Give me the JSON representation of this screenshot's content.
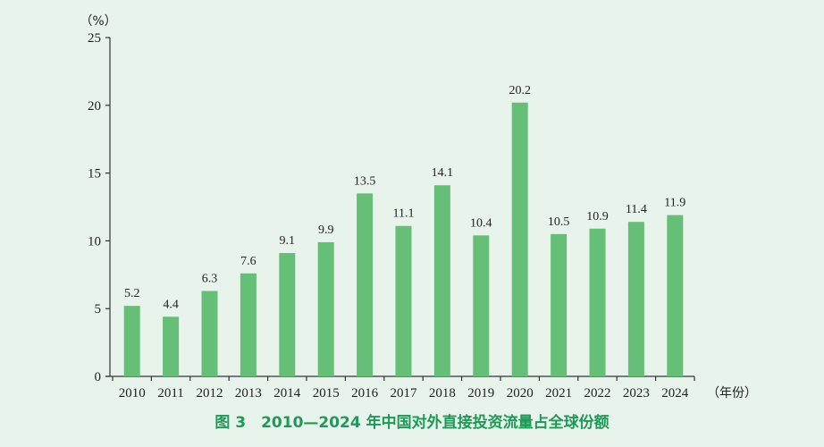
{
  "chart_data": {
    "type": "bar",
    "title": "图 3　2010—2024 年中国对外直接投资流量占全球份额",
    "xlabel": "（年份）",
    "ylabel": "（%）",
    "ylim": [
      0,
      25
    ],
    "yticks": [
      0,
      5,
      10,
      15,
      20,
      25
    ],
    "grid": false,
    "legend": null,
    "categories": [
      "2010",
      "2011",
      "2012",
      "2013",
      "2014",
      "2015",
      "2016",
      "2017",
      "2018",
      "2019",
      "2020",
      "2021",
      "2022",
      "2023",
      "2024"
    ],
    "values": [
      5.2,
      4.4,
      6.3,
      7.6,
      9.1,
      9.9,
      13.5,
      11.1,
      14.1,
      10.4,
      20.2,
      10.5,
      10.9,
      11.4,
      11.9
    ],
    "value_labels": [
      "5.2",
      "4.4",
      "6.3",
      "7.6",
      "9.1",
      "9.9",
      "13.5",
      "11.1",
      "14.1",
      "10.4",
      "20.2",
      "10.5",
      "10.9",
      "11.4",
      "11.9"
    ]
  },
  "colors": {
    "bar": "#66bf77",
    "caption": "#1e9a57",
    "background": "#e8f3ec",
    "axis": "#333333"
  },
  "caption": "图 3　2010—2024 年中国对外直接投资流量占全球份额"
}
